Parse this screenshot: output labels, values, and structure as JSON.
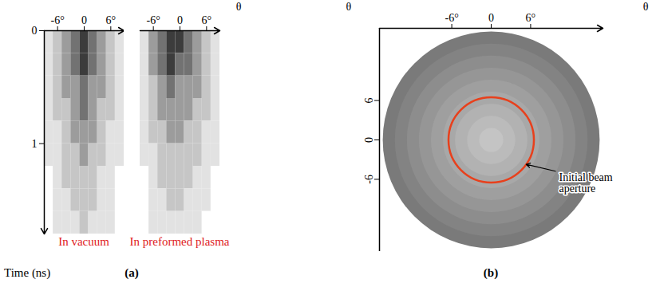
{
  "chart_data": [
    {
      "type": "heatmap",
      "panel": "(a)",
      "title": "In vacuum",
      "y_label": "Time (ns)",
      "xlim": [
        -9,
        9
      ],
      "xticks": [
        {
          "value": -6,
          "label": "-6°"
        },
        0,
        {
          "value": 6,
          "label": "6°"
        }
      ],
      "ylim": [
        0,
        1.8
      ],
      "yticks": [
        0,
        1
      ],
      "theta": [
        -8,
        -6,
        -4,
        -2,
        0,
        2,
        4,
        6,
        8
      ],
      "time": [
        0.1,
        0.3,
        0.5,
        0.7,
        0.9,
        1.1,
        1.3,
        1.5,
        1.7
      ],
      "colors": [
        "#ffffff",
        "#e2e2e2",
        "#c6c6c6",
        "#9c9c9c",
        "#727272",
        "#3c3c3c"
      ],
      "cells": [
        [
          1,
          2,
          3,
          4,
          5,
          4,
          3,
          2,
          1
        ],
        [
          1,
          2,
          3,
          4,
          5,
          4,
          3,
          2,
          1
        ],
        [
          1,
          2,
          3,
          3,
          4,
          3,
          3,
          2,
          1
        ],
        [
          1,
          2,
          2,
          3,
          4,
          3,
          2,
          2,
          1
        ],
        [
          1,
          1,
          2,
          3,
          3,
          3,
          2,
          1,
          1
        ],
        [
          1,
          1,
          2,
          2,
          3,
          2,
          2,
          1,
          1
        ],
        [
          0,
          1,
          2,
          2,
          2,
          2,
          1,
          1,
          0
        ],
        [
          0,
          1,
          1,
          2,
          2,
          2,
          1,
          1,
          0
        ],
        [
          0,
          1,
          1,
          1,
          2,
          1,
          1,
          1,
          0
        ]
      ]
    },
    {
      "type": "heatmap",
      "title": "In preformed plasma",
      "x_label": "θ",
      "tick_labels": "x",
      "xlim": [
        -9,
        9
      ],
      "xticks": [
        {
          "value": -6,
          "label": "-6°"
        },
        0,
        {
          "value": 6,
          "label": "6°"
        }
      ],
      "ylim": [
        0,
        1.8
      ],
      "yticks": [
        0,
        1
      ],
      "theta": [
        -8,
        -6,
        -4,
        -2,
        0,
        2,
        4,
        6,
        8
      ],
      "time": [
        0.1,
        0.3,
        0.5,
        0.7,
        0.9,
        1.1,
        1.3,
        1.5,
        1.7
      ],
      "colors": [
        "#ffffff",
        "#e2e2e2",
        "#c6c6c6",
        "#9c9c9c",
        "#727272",
        "#3c3c3c"
      ],
      "cells": [
        [
          1,
          3,
          4,
          5,
          5,
          4,
          3,
          2,
          1
        ],
        [
          1,
          3,
          4,
          5,
          4,
          4,
          3,
          2,
          1
        ],
        [
          1,
          2,
          3,
          4,
          3,
          3,
          3,
          2,
          1
        ],
        [
          1,
          2,
          3,
          3,
          3,
          3,
          2,
          2,
          1
        ],
        [
          1,
          2,
          2,
          3,
          3,
          2,
          2,
          1,
          1
        ],
        [
          1,
          1,
          2,
          2,
          2,
          2,
          2,
          1,
          1
        ],
        [
          0,
          1,
          2,
          2,
          2,
          2,
          1,
          1,
          0
        ],
        [
          0,
          1,
          1,
          2,
          2,
          1,
          1,
          1,
          0
        ],
        [
          0,
          1,
          1,
          1,
          1,
          1,
          1,
          0,
          0
        ]
      ]
    },
    {
      "type": "image",
      "panel": "(b)",
      "x_label": "θ",
      "y_label": "θ",
      "xlim": [
        -17,
        17
      ],
      "xticks": [
        {
          "value": -6,
          "label": "-6°"
        },
        0,
        {
          "value": 6,
          "label": "6°"
        }
      ],
      "ylim": [
        -17,
        17
      ],
      "yticks": [
        -6,
        0,
        6
      ],
      "image_radius": 16.5,
      "aperture_radius": 6.5,
      "color": "#e8401c",
      "annotation": "Initial beam aperture"
    }
  ]
}
